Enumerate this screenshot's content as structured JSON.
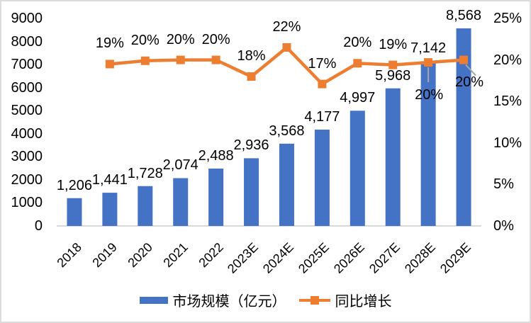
{
  "chart_data": {
    "type": "bar",
    "combo": "bar+line",
    "title": "",
    "categories": [
      "2018",
      "2019",
      "2020",
      "2021",
      "2022",
      "2023E",
      "2024E",
      "2025E",
      "2026E",
      "2027E",
      "2028E",
      "2029E"
    ],
    "series": [
      {
        "name": "市场规模（亿元）",
        "type": "bar",
        "axis": "left",
        "color": "#4472C4",
        "values": [
          1206,
          1441,
          1728,
          2074,
          2488,
          2936,
          3568,
          4177,
          4997,
          5968,
          7142,
          8568
        ],
        "labels": [
          "1,206",
          "1,441",
          "1,728",
          "2,074",
          "2,488",
          "2,936",
          "3,568",
          "4,177",
          "4,997",
          "5,968",
          "7,142",
          "8,568"
        ]
      },
      {
        "name": "同比增长",
        "type": "line",
        "axis": "right",
        "color": "#ED7D31",
        "values": [
          null,
          19.5,
          19.9,
          20.0,
          20.0,
          18.0,
          21.5,
          17.1,
          19.6,
          19.4,
          19.7,
          20.0
        ],
        "labels": [
          null,
          "19%",
          "20%",
          "20%",
          "20%",
          "18%",
          "22%",
          "17%",
          "20%",
          "19%",
          "20%",
          "20%"
        ],
        "label_placement": [
          null,
          "above",
          "above",
          "above",
          "above",
          "above",
          "above",
          "above",
          "above",
          "above",
          "below-leader",
          "below-leader"
        ]
      }
    ],
    "left_axis": {
      "min": 0,
      "max": 9000,
      "step": 1000,
      "ticks": [
        "0",
        "1000",
        "2000",
        "3000",
        "4000",
        "5000",
        "6000",
        "7000",
        "8000",
        "9000"
      ]
    },
    "right_axis": {
      "min": 0,
      "max": 25,
      "step": 5,
      "ticks": [
        "0%",
        "5%",
        "10%",
        "15%",
        "20%",
        "25%"
      ]
    },
    "grid": "off",
    "legend_position": "bottom",
    "colors": {
      "bar": "#4472C4",
      "line": "#ED7D31",
      "axis_line": "#D9D9D9",
      "leader_line": "#A6A6A6",
      "text": "#000000"
    }
  },
  "legend": {
    "bar_label": "市场规模（亿元）",
    "line_label": "同比增长"
  }
}
